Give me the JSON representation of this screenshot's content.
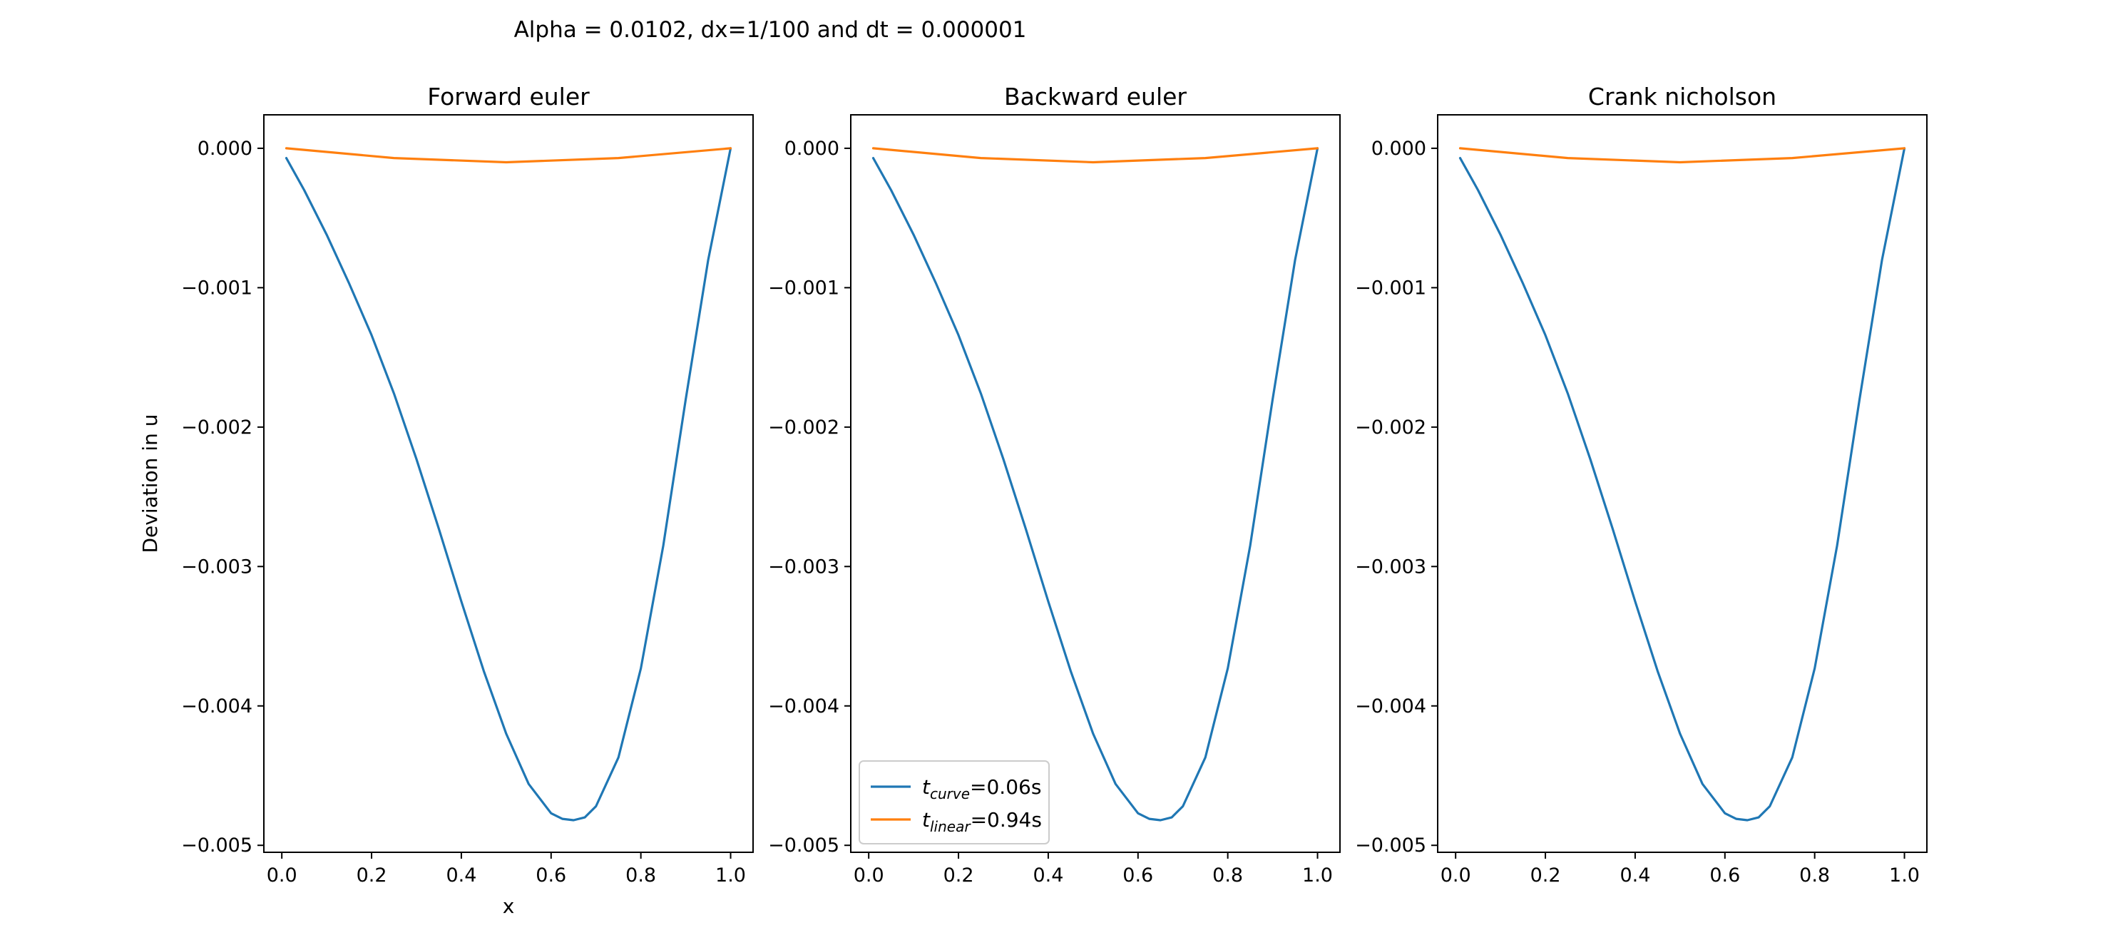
{
  "figure": {
    "suptitle": "Alpha = 0.0102, dx=1/100 and dt = 0.000001"
  },
  "colors": {
    "t_curve": "#1f77b4",
    "t_linear": "#ff7f0e"
  },
  "chart_data": [
    {
      "type": "line",
      "title": "Forward euler",
      "xlabel": "x",
      "ylabel": "Deviation in u",
      "xlim": [
        -0.04,
        1.05
      ],
      "ylim": [
        -0.00505,
        0.00024
      ],
      "xticks": [
        "0.0",
        "0.2",
        "0.4",
        "0.6",
        "0.8",
        "1.0"
      ],
      "yticks": [
        "0.000",
        "−0.001",
        "−0.002",
        "−0.003",
        "−0.004",
        "−0.005"
      ],
      "series": [
        {
          "name_main": "t",
          "name_sub": "curve",
          "name_suffix": "=0.06s",
          "color": "#1f77b4",
          "x": [
            0.01,
            0.05,
            0.1,
            0.15,
            0.2,
            0.25,
            0.3,
            0.35,
            0.4,
            0.45,
            0.5,
            0.55,
            0.6,
            0.625,
            0.65,
            0.675,
            0.7,
            0.75,
            0.8,
            0.85,
            0.9,
            0.95,
            1.0
          ],
          "y": [
            -7e-05,
            -0.0003,
            -0.00062,
            -0.00097,
            -0.00134,
            -0.00176,
            -0.00223,
            -0.00273,
            -0.00325,
            -0.00375,
            -0.0042,
            -0.00456,
            -0.00477,
            -0.00481,
            -0.00482,
            -0.0048,
            -0.00472,
            -0.00437,
            -0.00373,
            -0.00285,
            -0.0018,
            -0.0008,
            0.0
          ]
        },
        {
          "name_main": "t",
          "name_sub": "linear",
          "name_suffix": "=0.94s",
          "color": "#ff7f0e",
          "x": [
            0.01,
            0.25,
            0.5,
            0.75,
            1.0
          ],
          "y": [
            0.0,
            -7e-05,
            -0.0001,
            -7e-05,
            0.0
          ]
        }
      ]
    },
    {
      "type": "line",
      "title": "Backward euler",
      "xlim": [
        -0.04,
        1.05
      ],
      "ylim": [
        -0.00505,
        0.00024
      ],
      "xticks": [
        "0.0",
        "0.2",
        "0.4",
        "0.6",
        "0.8",
        "1.0"
      ],
      "yticks": [
        "0.000",
        "−0.001",
        "−0.002",
        "−0.003",
        "−0.004",
        "−0.005"
      ],
      "legend": "lower-left",
      "series": [
        {
          "name_main": "t",
          "name_sub": "curve",
          "name_suffix": "=0.06s",
          "color": "#1f77b4",
          "x": [
            0.01,
            0.05,
            0.1,
            0.15,
            0.2,
            0.25,
            0.3,
            0.35,
            0.4,
            0.45,
            0.5,
            0.55,
            0.6,
            0.625,
            0.65,
            0.675,
            0.7,
            0.75,
            0.8,
            0.85,
            0.9,
            0.95,
            1.0
          ],
          "y": [
            -7e-05,
            -0.0003,
            -0.00062,
            -0.00097,
            -0.00134,
            -0.00176,
            -0.00223,
            -0.00273,
            -0.00325,
            -0.00375,
            -0.0042,
            -0.00456,
            -0.00477,
            -0.00481,
            -0.00482,
            -0.0048,
            -0.00472,
            -0.00437,
            -0.00373,
            -0.00285,
            -0.0018,
            -0.0008,
            0.0
          ]
        },
        {
          "name_main": "t",
          "name_sub": "linear",
          "name_suffix": "=0.94s",
          "color": "#ff7f0e",
          "x": [
            0.01,
            0.25,
            0.5,
            0.75,
            1.0
          ],
          "y": [
            0.0,
            -7e-05,
            -0.0001,
            -7e-05,
            0.0
          ]
        }
      ]
    },
    {
      "type": "line",
      "title": "Crank nicholson",
      "xlim": [
        -0.04,
        1.05
      ],
      "ylim": [
        -0.00505,
        0.00024
      ],
      "xticks": [
        "0.0",
        "0.2",
        "0.4",
        "0.6",
        "0.8",
        "1.0"
      ],
      "yticks": [
        "0.000",
        "−0.001",
        "−0.002",
        "−0.003",
        "−0.004",
        "−0.005"
      ],
      "series": [
        {
          "name_main": "t",
          "name_sub": "curve",
          "name_suffix": "=0.06s",
          "color": "#1f77b4",
          "x": [
            0.01,
            0.05,
            0.1,
            0.15,
            0.2,
            0.25,
            0.3,
            0.35,
            0.4,
            0.45,
            0.5,
            0.55,
            0.6,
            0.625,
            0.65,
            0.675,
            0.7,
            0.75,
            0.8,
            0.85,
            0.9,
            0.95,
            1.0
          ],
          "y": [
            -7e-05,
            -0.0003,
            -0.00062,
            -0.00097,
            -0.00134,
            -0.00176,
            -0.00223,
            -0.00273,
            -0.00325,
            -0.00375,
            -0.0042,
            -0.00456,
            -0.00477,
            -0.00481,
            -0.00482,
            -0.0048,
            -0.00472,
            -0.00437,
            -0.00373,
            -0.00285,
            -0.0018,
            -0.0008,
            0.0
          ]
        },
        {
          "name_main": "t",
          "name_sub": "linear",
          "name_suffix": "=0.94s",
          "color": "#ff7f0e",
          "x": [
            0.01,
            0.25,
            0.5,
            0.75,
            1.0
          ],
          "y": [
            0.0,
            -7e-05,
            -0.0001,
            -7e-05,
            0.0
          ]
        }
      ]
    }
  ]
}
